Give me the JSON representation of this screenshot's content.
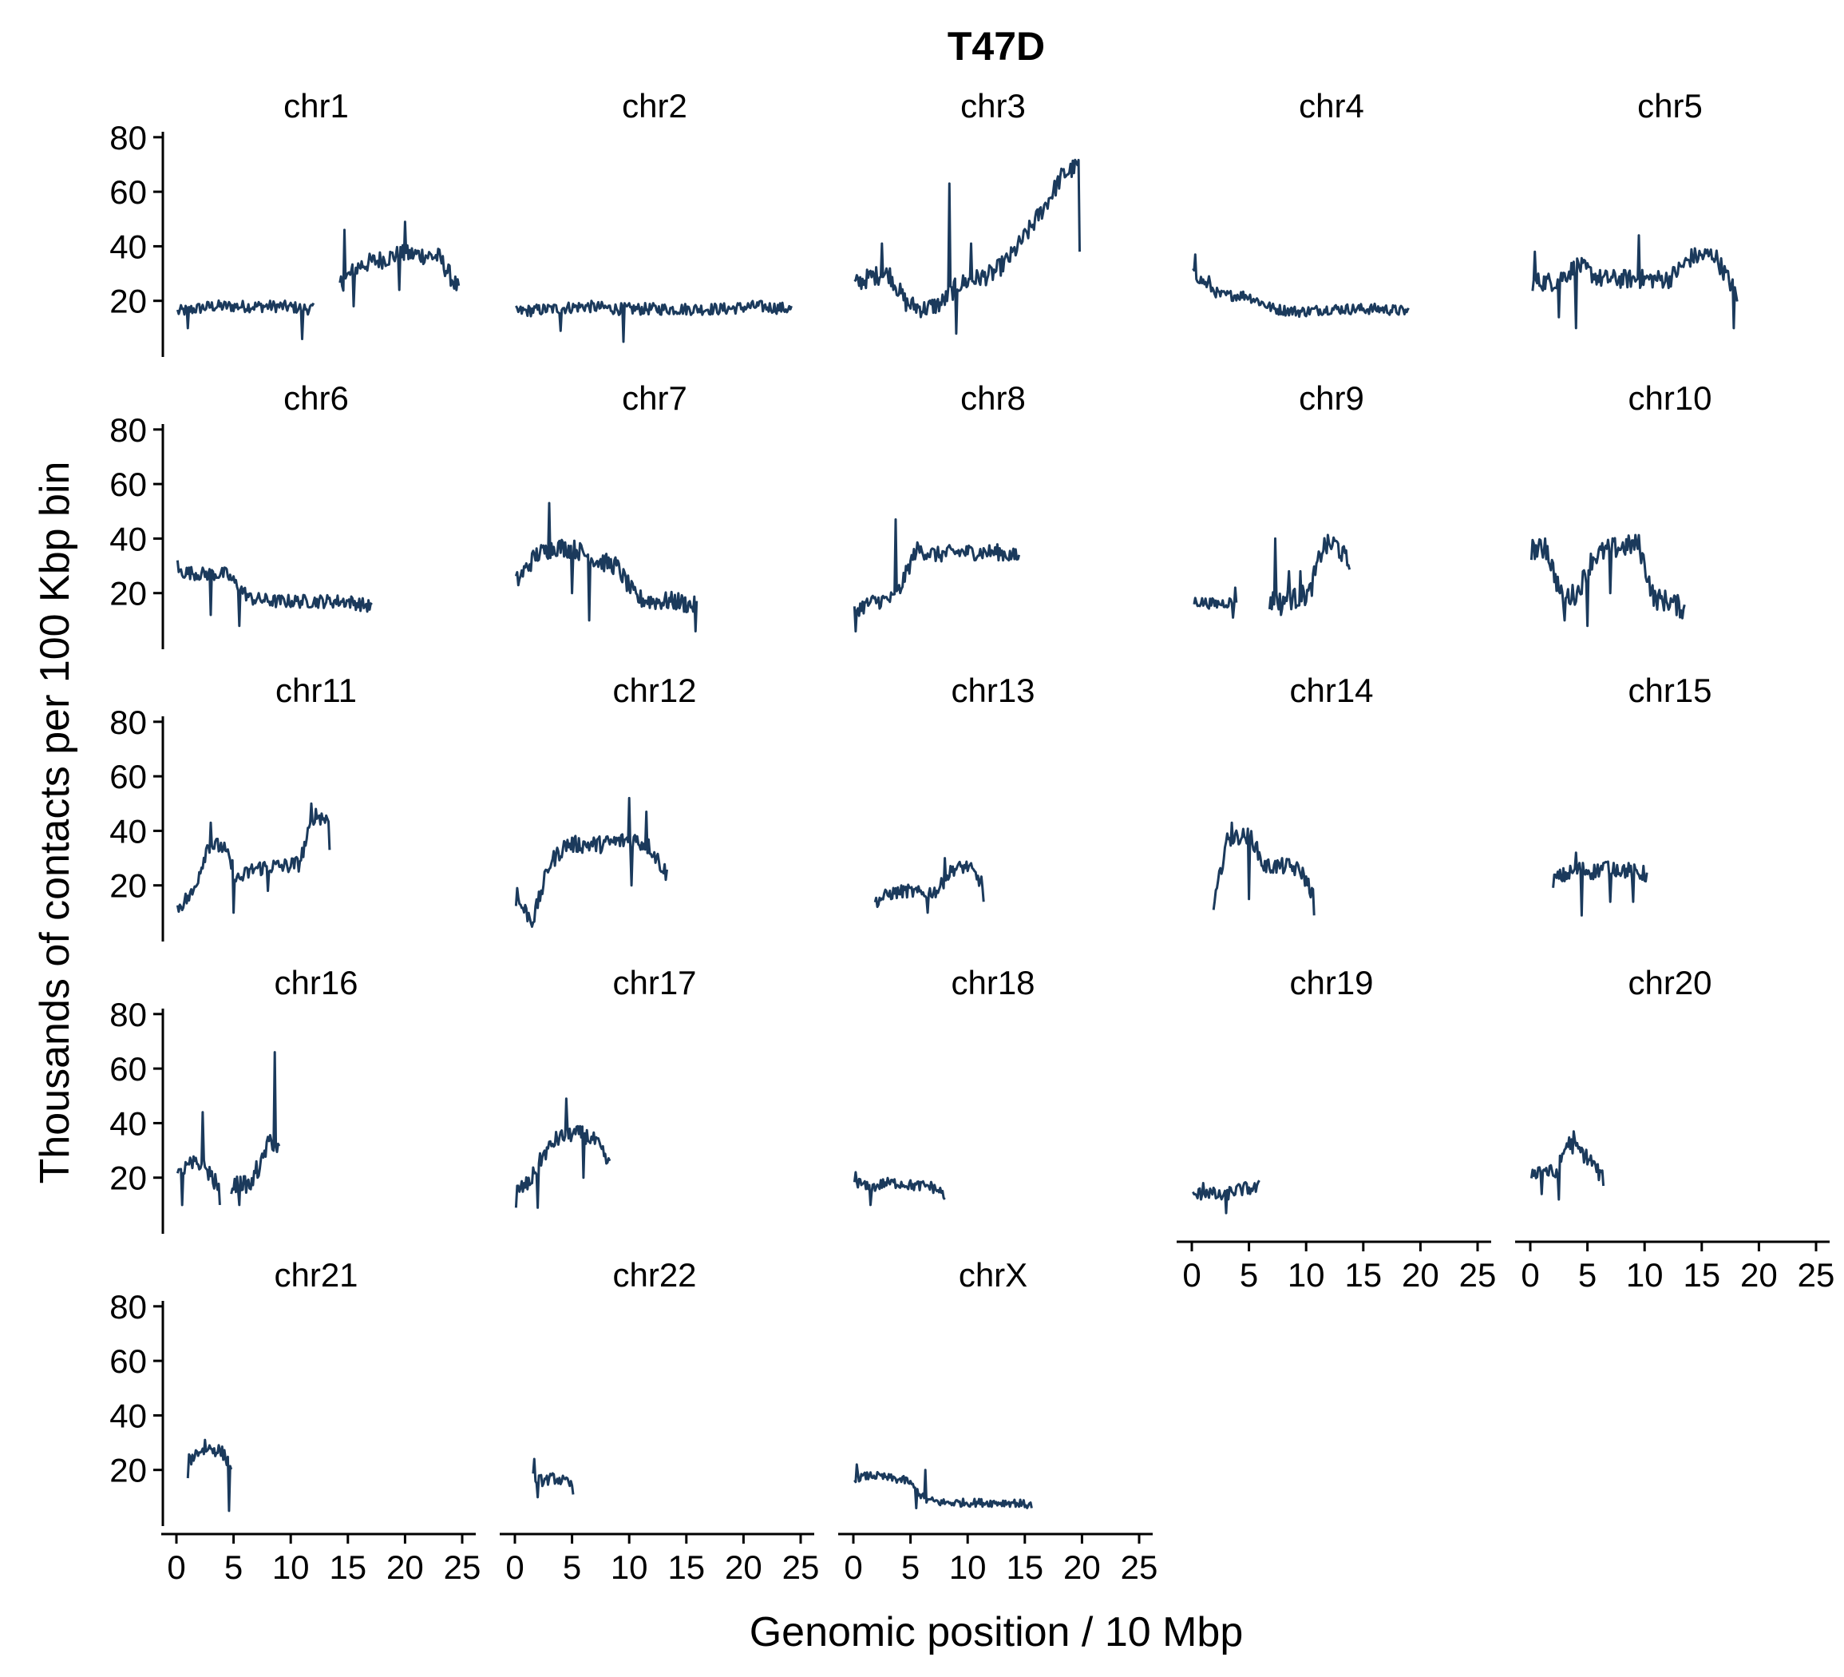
{
  "chart_data": {
    "type": "line",
    "title": "T47D",
    "xlabel": "Genomic position / 10 Mbp",
    "ylabel": "Thousands of contacts per 100 Kbp bin",
    "xlim": [
      0,
      25
    ],
    "ylim": [
      0,
      82
    ],
    "x_ticks": [
      0,
      5,
      10,
      15,
      20,
      25
    ],
    "y_ticks": [
      20,
      40,
      60,
      80
    ],
    "line_color": "#1b3a5c",
    "grid": false,
    "legend": "none",
    "panels": [
      {
        "name": "chr1",
        "segments": [
          {
            "x0": 0.1,
            "x1": 12.0,
            "base": [
              16,
              18,
              18,
              18,
              17
            ],
            "noise": 2.2,
            "spikes": [
              [
                1.0,
                10
              ],
              [
                11.0,
                6
              ]
            ]
          },
          {
            "x0": 14.3,
            "x1": 24.7,
            "base": [
              26,
              33,
              35,
              37,
              37,
              36,
              24
            ],
            "noise": 3.5,
            "spikes": [
              [
                14.7,
                46
              ],
              [
                20.0,
                49
              ],
              [
                15.5,
                18
              ],
              [
                19.5,
                24
              ]
            ]
          }
        ]
      },
      {
        "name": "chr2",
        "segments": [
          {
            "x0": 0.1,
            "x1": 24.2,
            "base": [
              16,
              17,
              18,
              17,
              17,
              17,
              17,
              18,
              17
            ],
            "noise": 2.2,
            "spikes": [
              [
                9.5,
                5
              ],
              [
                4.0,
                9
              ]
            ]
          }
        ]
      },
      {
        "name": "chr3",
        "segments": [
          {
            "x0": 0.1,
            "x1": 19.8,
            "base": [
              26,
              29,
              30,
              19,
              17,
              19,
              26,
              28,
              30,
              36,
              45,
              55,
              66,
              70
            ],
            "noise": 3.5,
            "spikes": [
              [
                8.4,
                63
              ],
              [
                10.3,
                41
              ],
              [
                19.8,
                38
              ],
              [
                2.5,
                41
              ],
              [
                9.0,
                8
              ]
            ]
          }
        ]
      },
      {
        "name": "chr4",
        "segments": [
          {
            "x0": 0.1,
            "x1": 19.0,
            "base": [
              30,
              22,
              22,
              17,
              16,
              17,
              17,
              17,
              16
            ],
            "noise": 2.0,
            "spikes": [
              [
                0.3,
                37
              ],
              [
                1.5,
                29
              ]
            ]
          }
        ]
      },
      {
        "name": "chr5",
        "segments": [
          {
            "x0": 0.2,
            "x1": 18.1,
            "base": [
              27,
              27,
              33,
              28,
              28,
              28,
              28,
              36,
              37,
              22
            ],
            "noise": 3.5,
            "spikes": [
              [
                0.4,
                38
              ],
              [
                2.5,
                14
              ],
              [
                4.0,
                10
              ],
              [
                9.5,
                44
              ],
              [
                17.8,
                10
              ]
            ]
          }
        ]
      },
      {
        "name": "chr6",
        "segments": [
          {
            "x0": 0.1,
            "x1": 17.1,
            "base": [
              28,
              27,
              27,
              18,
              17,
              17,
              17,
              17,
              15
            ],
            "noise": 2.5,
            "spikes": [
              [
                5.5,
                8
              ],
              [
                0.1,
                32
              ],
              [
                3.0,
                12
              ]
            ]
          }
        ]
      },
      {
        "name": "chr7",
        "segments": [
          {
            "x0": 0.1,
            "x1": 15.9,
            "base": [
              24,
              34,
              37,
              36,
              32,
              30,
              18,
              17,
              17,
              15
            ],
            "noise": 3.5,
            "spikes": [
              [
                3.0,
                53
              ],
              [
                6.5,
                10
              ],
              [
                15.8,
                6
              ],
              [
                5.0,
                20
              ]
            ]
          }
        ]
      },
      {
        "name": "chr8",
        "segments": [
          {
            "x0": 0.1,
            "x1": 14.5,
            "base": [
              14,
              17,
              18,
              36,
              34,
              35,
              35,
              35,
              33
            ],
            "noise": 3.0,
            "spikes": [
              [
                3.7,
                47
              ],
              [
                4.1,
                20
              ],
              [
                0.2,
                6
              ]
            ]
          }
        ]
      },
      {
        "name": "chr9",
        "segments": [
          {
            "x0": 0.2,
            "x1": 3.9,
            "base": [
              17,
              16,
              17
            ],
            "noise": 2.0,
            "spikes": [
              [
                3.8,
                22
              ],
              [
                3.6,
                11
              ]
            ]
          },
          {
            "x0": 6.8,
            "x1": 13.8,
            "base": [
              17,
              18,
              18,
              20,
              37,
              38,
              30
            ],
            "noise": 4.0,
            "spikes": [
              [
                7.3,
                40
              ],
              [
                8.5,
                28
              ],
              [
                9.5,
                28
              ],
              [
                7.8,
                12
              ]
            ]
          }
        ]
      },
      {
        "name": "chr10",
        "segments": [
          {
            "x0": 0.1,
            "x1": 13.5,
            "base": [
              36,
              36,
              18,
              20,
              33,
              36,
              37,
              38,
              18,
              17,
              14
            ],
            "noise": 4.0,
            "spikes": [
              [
                3.0,
                10
              ],
              [
                5.0,
                8
              ],
              [
                7.0,
                20
              ],
              [
                1.3,
                40
              ]
            ]
          }
        ]
      },
      {
        "name": "chr11",
        "segments": [
          {
            "x0": 0.1,
            "x1": 13.4,
            "base": [
              12,
              17,
              35,
              34,
              22,
              26,
              27,
              27,
              28,
              46,
              44
            ],
            "noise": 3.0,
            "spikes": [
              [
                5.0,
                10
              ],
              [
                11.8,
                50
              ],
              [
                3.0,
                43
              ],
              [
                8.0,
                18
              ],
              [
                13.4,
                33
              ]
            ]
          }
        ]
      },
      {
        "name": "chr12",
        "segments": [
          {
            "x0": 0.1,
            "x1": 13.3,
            "base": [
              15,
              7,
              28,
              35,
              35,
              35,
              36,
              37,
              34,
              24
            ],
            "noise": 3.2,
            "spikes": [
              [
                10.0,
                52
              ],
              [
                11.5,
                47
              ],
              [
                10.2,
                20
              ],
              [
                0.2,
                19
              ]
            ]
          }
        ]
      },
      {
        "name": "chr13",
        "segments": [
          {
            "x0": 1.9,
            "x1": 11.4,
            "base": [
              14,
              17,
              18,
              17,
              18,
              26,
              27,
              20
            ],
            "noise": 2.5,
            "spikes": [
              [
                8.0,
                30
              ],
              [
                11.4,
                14
              ],
              [
                6.5,
                10
              ]
            ]
          }
        ]
      },
      {
        "name": "chr14",
        "segments": [
          {
            "x0": 1.9,
            "x1": 10.7,
            "base": [
              11,
              36,
              38,
              38,
              27,
              27,
              27,
              25,
              16
            ],
            "noise": 3.0,
            "spikes": [
              [
                3.5,
                43
              ],
              [
                10.7,
                9
              ],
              [
                5.0,
                15
              ],
              [
                1.9,
                11
              ]
            ]
          }
        ]
      },
      {
        "name": "chr15",
        "segments": [
          {
            "x0": 2.0,
            "x1": 10.2,
            "base": [
              22,
              24,
              26,
              25,
              27,
              26,
              25,
              24
            ],
            "noise": 3.0,
            "spikes": [
              [
                4.5,
                9
              ],
              [
                7.0,
                14
              ],
              [
                9.0,
                14
              ],
              [
                4.0,
                32
              ]
            ]
          }
        ]
      },
      {
        "name": "chr16",
        "segments": [
          {
            "x0": 0.1,
            "x1": 3.8,
            "base": [
              20,
              24,
              25,
              22,
              15
            ],
            "noise": 3.5,
            "spikes": [
              [
                2.3,
                44
              ],
              [
                0.5,
                10
              ],
              [
                3.8,
                10
              ]
            ]
          },
          {
            "x0": 4.8,
            "x1": 9.0,
            "base": [
              17,
              18,
              17,
              24,
              34,
              30
            ],
            "noise": 3.0,
            "spikes": [
              [
                8.6,
                66
              ],
              [
                5.5,
                10
              ],
              [
                7.0,
                26
              ]
            ]
          }
        ]
      },
      {
        "name": "chr17",
        "segments": [
          {
            "x0": 0.1,
            "x1": 8.3,
            "base": [
              15,
              18,
              28,
              34,
              36,
              36,
              33,
              24
            ],
            "noise": 3.0,
            "spikes": [
              [
                4.5,
                49
              ],
              [
                2.0,
                9
              ],
              [
                6.0,
                20
              ],
              [
                0.1,
                9
              ]
            ]
          }
        ]
      },
      {
        "name": "chr18",
        "segments": [
          {
            "x0": 0.1,
            "x1": 8.0,
            "base": [
              19,
              16,
              18,
              18,
              17,
              17,
              14
            ],
            "noise": 2.0,
            "spikes": [
              [
                0.2,
                22
              ],
              [
                1.5,
                10
              ],
              [
                8.0,
                12
              ]
            ]
          }
        ]
      },
      {
        "name": "chr19",
        "segments": [
          {
            "x0": 0.1,
            "x1": 5.9,
            "base": [
              13,
              15,
              13,
              15,
              16,
              16
            ],
            "noise": 2.5,
            "spikes": [
              [
                3.0,
                7
              ],
              [
                1.0,
                18
              ],
              [
                5.9,
                19
              ]
            ]
          }
        ]
      },
      {
        "name": "chr20",
        "segments": [
          {
            "x0": 0.1,
            "x1": 6.4,
            "base": [
              22,
              23,
              21,
              33,
              30,
              26,
              19
            ],
            "noise": 3.0,
            "spikes": [
              [
                2.5,
                12
              ],
              [
                3.8,
                37
              ],
              [
                1.0,
                14
              ],
              [
                6.4,
                17
              ]
            ]
          }
        ]
      },
      {
        "name": "chr21",
        "segments": [
          {
            "x0": 1.0,
            "x1": 4.8,
            "base": [
              23,
              27,
              28,
              27,
              22
            ],
            "noise": 2.5,
            "spikes": [
              [
                4.6,
                5
              ],
              [
                2.5,
                31
              ],
              [
                1.0,
                17
              ]
            ]
          }
        ]
      },
      {
        "name": "chr22",
        "segments": [
          {
            "x0": 1.6,
            "x1": 5.1,
            "base": [
              17,
              16,
              17,
              16,
              14
            ],
            "noise": 2.0,
            "spikes": [
              [
                1.7,
                24
              ],
              [
                2.0,
                10
              ],
              [
                5.1,
                11
              ]
            ]
          }
        ]
      },
      {
        "name": "chrX",
        "segments": [
          {
            "x0": 0.1,
            "x1": 15.6,
            "base": [
              17,
              18,
              17,
              16,
              9,
              8,
              8,
              8,
              8,
              8,
              7
            ],
            "noise": 1.5,
            "spikes": [
              [
                6.3,
                20
              ],
              [
                0.3,
                22
              ],
              [
                5.5,
                6
              ],
              [
                15.6,
                6
              ]
            ]
          }
        ]
      }
    ]
  }
}
